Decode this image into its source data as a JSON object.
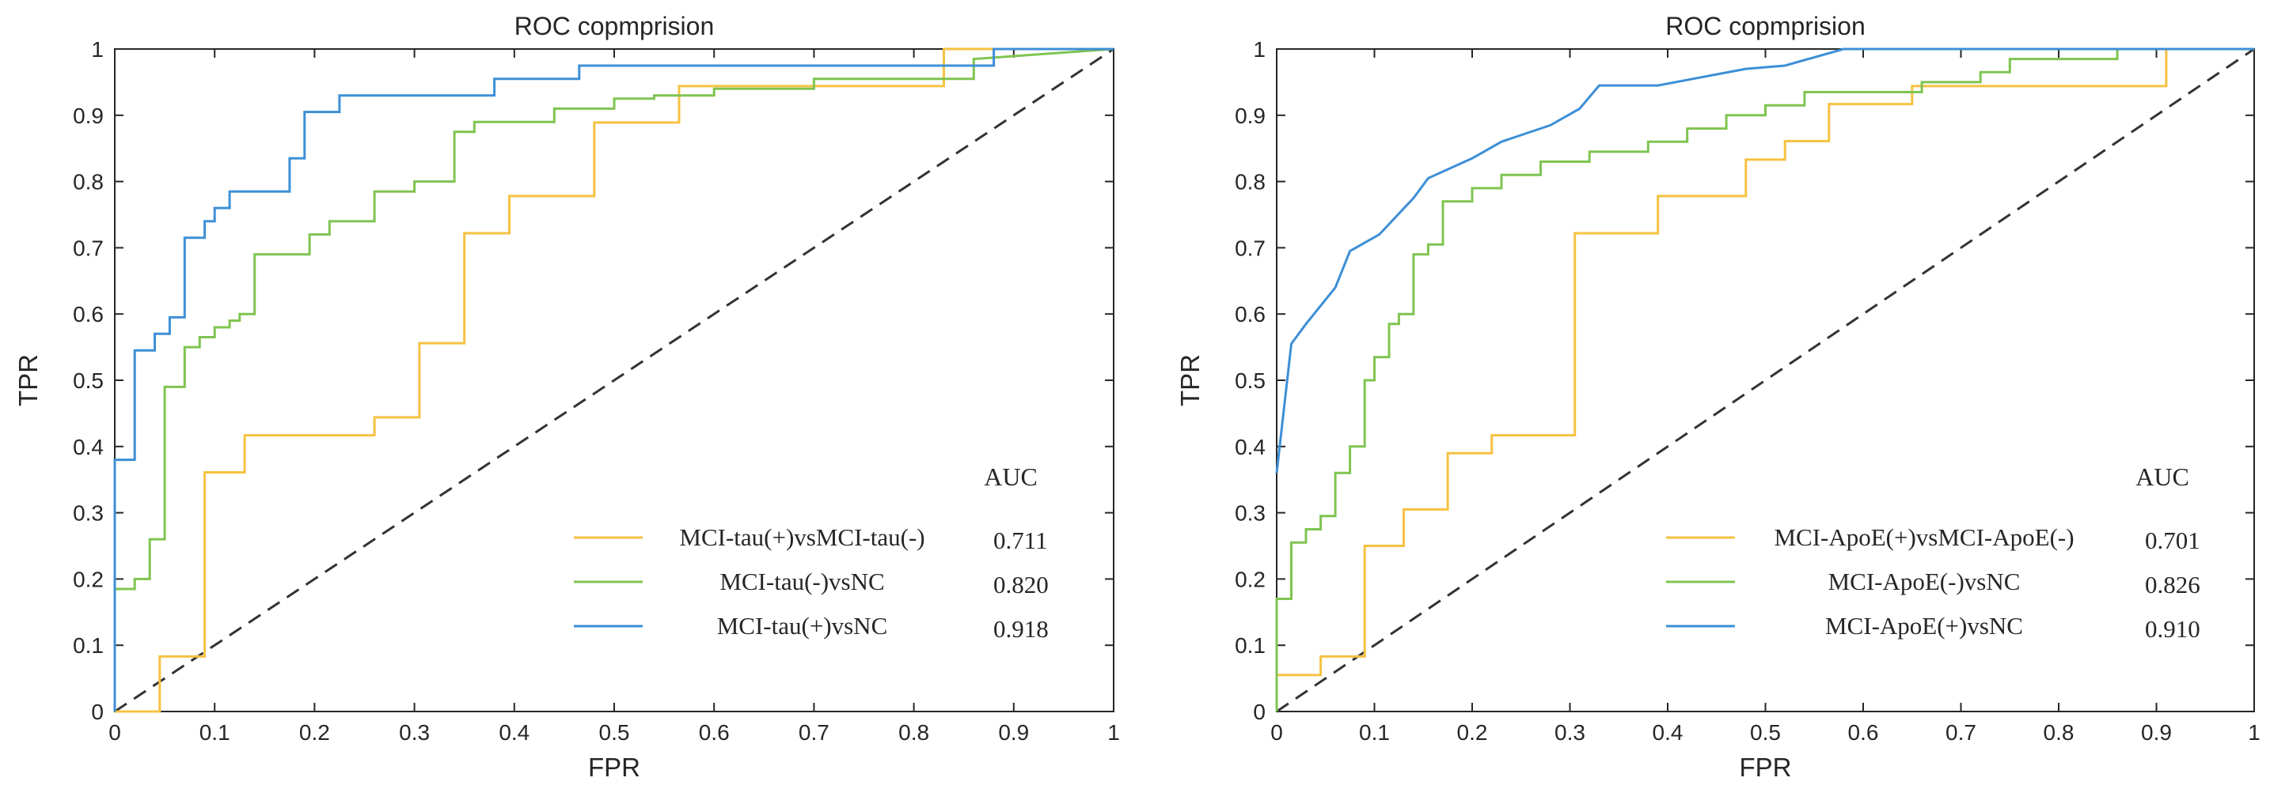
{
  "chart_data": [
    {
      "type": "line",
      "title": "ROC copmprision",
      "xlabel": "FPR",
      "ylabel": "TPR",
      "xlim": [
        0,
        1
      ],
      "ylim": [
        0,
        1
      ],
      "xticks": [
        "0",
        "0.1",
        "0.2",
        "0.3",
        "0.4",
        "0.5",
        "0.6",
        "0.7",
        "0.8",
        "0.9",
        "1"
      ],
      "yticks": [
        "0",
        "0.1",
        "0.2",
        "0.3",
        "0.4",
        "0.5",
        "0.6",
        "0.7",
        "0.8",
        "0.9",
        "1"
      ],
      "grid": false,
      "legend_position": "bottom-right",
      "legend_header": "AUC",
      "reference_line": {
        "x": [
          0,
          1
        ],
        "y": [
          0,
          1
        ],
        "style": "dashed",
        "color": "#333333"
      },
      "series": [
        {
          "name": "MCI-tau(+)vsMCI-tau(-)",
          "auc": "0.711",
          "color": "#F5C242",
          "x": [
            0,
            0.045,
            0.045,
            0.09,
            0.09,
            0.13,
            0.13,
            0.26,
            0.26,
            0.305,
            0.305,
            0.35,
            0.35,
            0.395,
            0.395,
            0.48,
            0.48,
            0.565,
            0.565,
            0.83,
            0.83,
            1
          ],
          "y": [
            0,
            0,
            0.083,
            0.083,
            0.361,
            0.361,
            0.417,
            0.417,
            0.444,
            0.444,
            0.556,
            0.556,
            0.722,
            0.722,
            0.778,
            0.778,
            0.889,
            0.889,
            0.944,
            0.944,
            1,
            1
          ]
        },
        {
          "name": "MCI-tau(-)vsNC",
          "auc": "0.820",
          "color": "#7FC450",
          "x": [
            0,
            0,
            0.02,
            0.02,
            0.035,
            0.035,
            0.05,
            0.05,
            0.07,
            0.07,
            0.085,
            0.085,
            0.1,
            0.1,
            0.115,
            0.115,
            0.125,
            0.125,
            0.14,
            0.14,
            0.195,
            0.195,
            0.215,
            0.215,
            0.26,
            0.26,
            0.3,
            0.3,
            0.34,
            0.34,
            0.36,
            0.36,
            0.44,
            0.44,
            0.5,
            0.5,
            0.54,
            0.54,
            0.6,
            0.6,
            0.7,
            0.7,
            0.86,
            0.86,
            1
          ],
          "y": [
            0,
            0.185,
            0.185,
            0.2,
            0.2,
            0.26,
            0.26,
            0.49,
            0.49,
            0.55,
            0.55,
            0.565,
            0.565,
            0.58,
            0.58,
            0.59,
            0.59,
            0.6,
            0.6,
            0.69,
            0.69,
            0.72,
            0.72,
            0.74,
            0.74,
            0.785,
            0.785,
            0.8,
            0.8,
            0.875,
            0.875,
            0.89,
            0.89,
            0.91,
            0.91,
            0.925,
            0.925,
            0.93,
            0.93,
            0.94,
            0.94,
            0.955,
            0.955,
            0.985,
            1
          ]
        },
        {
          "name": "MCI-tau(+)vsNC",
          "auc": "0.918",
          "color": "#3D8FD6",
          "x": [
            0,
            0,
            0.02,
            0.02,
            0.04,
            0.04,
            0.055,
            0.055,
            0.07,
            0.07,
            0.09,
            0.09,
            0.1,
            0.1,
            0.115,
            0.115,
            0.13,
            0.13,
            0.175,
            0.175,
            0.19,
            0.19,
            0.225,
            0.225,
            0.38,
            0.38,
            0.465,
            0.465,
            0.88,
            0.88,
            1
          ],
          "y": [
            0,
            0.38,
            0.38,
            0.545,
            0.545,
            0.57,
            0.57,
            0.595,
            0.595,
            0.715,
            0.715,
            0.74,
            0.74,
            0.76,
            0.76,
            0.785,
            0.785,
            0.785,
            0.785,
            0.835,
            0.835,
            0.905,
            0.905,
            0.93,
            0.93,
            0.955,
            0.955,
            0.975,
            0.975,
            1,
            1
          ]
        }
      ]
    },
    {
      "type": "line",
      "title": "ROC copmprision",
      "xlabel": "FPR",
      "ylabel": "TPR",
      "xlim": [
        0,
        1
      ],
      "ylim": [
        0,
        1
      ],
      "xticks": [
        "0",
        "0.1",
        "0.2",
        "0.3",
        "0.4",
        "0.5",
        "0.6",
        "0.7",
        "0.8",
        "0.9",
        "1"
      ],
      "yticks": [
        "0",
        "0.1",
        "0.2",
        "0.3",
        "0.4",
        "0.5",
        "0.6",
        "0.7",
        "0.8",
        "0.9",
        "1"
      ],
      "grid": false,
      "legend_position": "bottom-right",
      "legend_header": "AUC",
      "reference_line": {
        "x": [
          0,
          1
        ],
        "y": [
          0,
          1
        ],
        "style": "dashed",
        "color": "#333333"
      },
      "series": [
        {
          "name": "MCI-ApoE(+)vsMCI-ApoE(-)",
          "auc": "0.701",
          "color": "#F5C242",
          "x": [
            0,
            0.045,
            0.045,
            0.09,
            0.09,
            0.13,
            0.13,
            0.175,
            0.175,
            0.22,
            0.22,
            0.305,
            0.305,
            0.39,
            0.39,
            0.48,
            0.48,
            0.52,
            0.52,
            0.565,
            0.565,
            0.65,
            0.65,
            0.91,
            0.91,
            1
          ],
          "y": [
            0.055,
            0.055,
            0.083,
            0.083,
            0.25,
            0.25,
            0.305,
            0.305,
            0.39,
            0.39,
            0.417,
            0.417,
            0.722,
            0.722,
            0.778,
            0.778,
            0.833,
            0.833,
            0.861,
            0.861,
            0.917,
            0.917,
            0.944,
            0.944,
            1,
            1
          ]
        },
        {
          "name": "MCI-ApoE(-)vsNC",
          "auc": "0.826",
          "color": "#7FC450",
          "x": [
            0,
            0,
            0.015,
            0.015,
            0.03,
            0.03,
            0.045,
            0.045,
            0.06,
            0.06,
            0.075,
            0.075,
            0.09,
            0.09,
            0.1,
            0.1,
            0.115,
            0.115,
            0.125,
            0.125,
            0.14,
            0.14,
            0.155,
            0.155,
            0.17,
            0.17,
            0.2,
            0.2,
            0.23,
            0.23,
            0.27,
            0.27,
            0.32,
            0.32,
            0.38,
            0.38,
            0.42,
            0.42,
            0.46,
            0.46,
            0.5,
            0.5,
            0.54,
            0.54,
            0.66,
            0.66,
            0.72,
            0.72,
            0.75,
            0.75,
            0.86,
            0.86,
            1
          ],
          "y": [
            0,
            0.17,
            0.17,
            0.255,
            0.255,
            0.275,
            0.275,
            0.295,
            0.295,
            0.36,
            0.36,
            0.4,
            0.4,
            0.5,
            0.5,
            0.535,
            0.535,
            0.585,
            0.585,
            0.6,
            0.6,
            0.69,
            0.69,
            0.705,
            0.705,
            0.77,
            0.77,
            0.79,
            0.79,
            0.81,
            0.81,
            0.83,
            0.83,
            0.845,
            0.845,
            0.86,
            0.86,
            0.88,
            0.88,
            0.9,
            0.9,
            0.915,
            0.915,
            0.935,
            0.935,
            0.95,
            0.95,
            0.965,
            0.965,
            0.985,
            0.985,
            1,
            1
          ]
        },
        {
          "name": "MCI-ApoE(+)vsNC",
          "auc": "0.910",
          "color": "#3D8FD6",
          "x": [
            0,
            0,
            0.015,
            0.015,
            0.03,
            0.03,
            0.06,
            0.06,
            0.075,
            0.075,
            0.105,
            0.105,
            0.14,
            0.14,
            0.155,
            0.155,
            0.2,
            0.2,
            0.23,
            0.23,
            0.28,
            0.28,
            0.31,
            0.31,
            0.33,
            0.33,
            0.39,
            0.39,
            0.48,
            0.48,
            0.52,
            0.52,
            0.58,
            0.58,
            1
          ],
          "y": [
            0.36,
            0.36,
            0.555,
            0.555,
            0.585,
            0.585,
            0.64,
            0.64,
            0.695,
            0.695,
            0.72,
            0.72,
            0.775,
            0.775,
            0.805,
            0.805,
            0.835,
            0.835,
            0.86,
            0.86,
            0.885,
            0.885,
            0.91,
            0.91,
            0.945,
            0.945,
            0.945,
            0.945,
            0.97,
            0.97,
            0.975,
            0.975,
            1,
            1,
            1
          ]
        }
      ]
    }
  ]
}
